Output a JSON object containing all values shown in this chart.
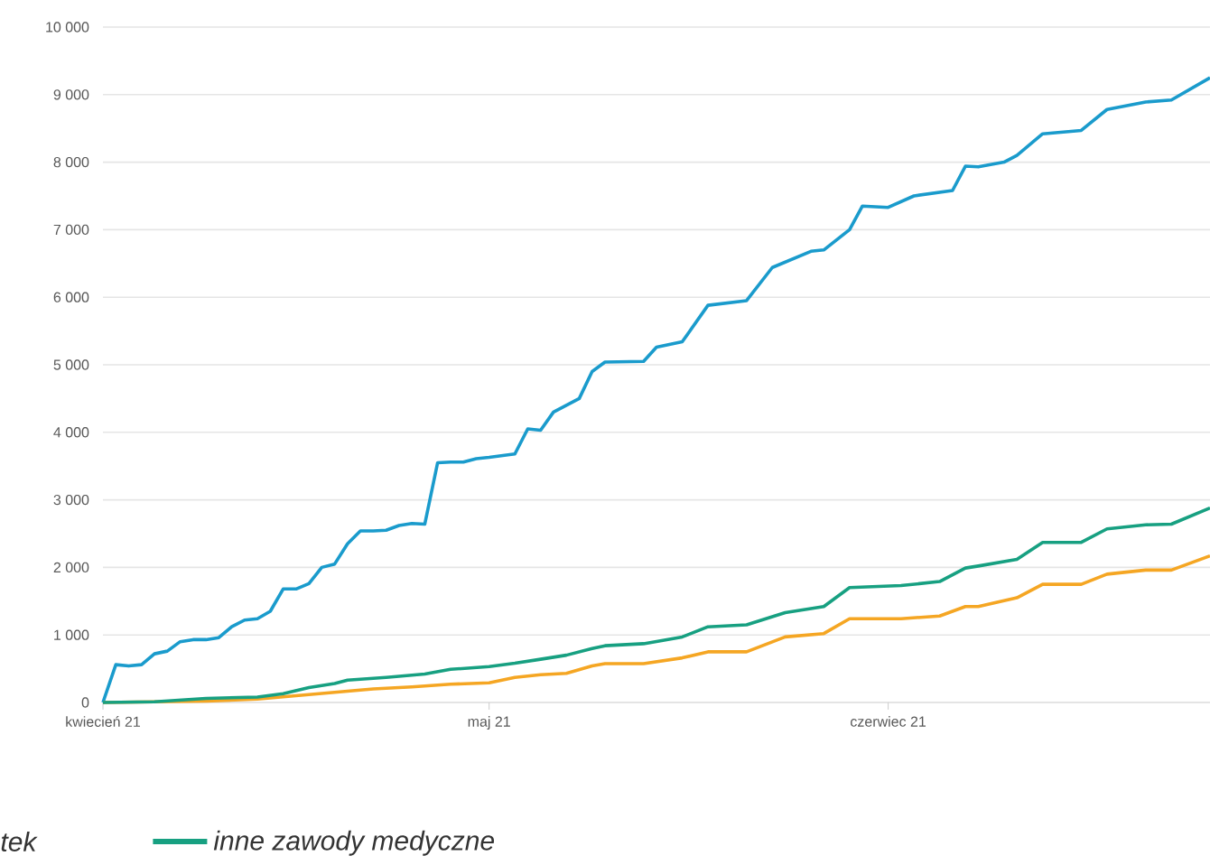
{
  "chart_data": {
    "type": "line",
    "xlim": [
      "2021-04-01",
      "2021-06-26"
    ],
    "xticks": [
      {
        "value": "2021-04-01",
        "label": "kwiecień 21"
      },
      {
        "value": "2021-05-01",
        "label": "maj 21"
      },
      {
        "value": "2021-06-01",
        "label": "czerwiec 21"
      }
    ],
    "ylim": [
      0,
      10000
    ],
    "yticks": [
      0,
      {
        "value": 1000,
        "label": "1 000"
      },
      {
        "value": 2000,
        "label": "2 000"
      },
      {
        "value": 3000,
        "label": "3 000"
      },
      {
        "value": 4000,
        "label": "4 000"
      },
      {
        "value": 5000,
        "label": "5 000"
      },
      {
        "value": 6000,
        "label": "6 000"
      },
      {
        "value": 7000,
        "label": "7 000"
      },
      {
        "value": 8000,
        "label": "8 000"
      },
      {
        "value": 9000,
        "label": "9 000"
      },
      {
        "value": 10000,
        "label": "10 000"
      }
    ],
    "grid": "y",
    "legend": "bottom",
    "marker": "none",
    "line_style": "solid",
    "annotations": [
      "tek"
    ],
    "series": [
      {
        "color": "#1a9bcc",
        "x": [
          "2021-04-01",
          "2021-04-02",
          "2021-04-03",
          "2021-04-04",
          "2021-04-05",
          "2021-04-06",
          "2021-04-07",
          "2021-04-08",
          "2021-04-09",
          "2021-04-10",
          "2021-04-11",
          "2021-04-12",
          "2021-04-13",
          "2021-04-14",
          "2021-04-15",
          "2021-04-16",
          "2021-04-17",
          "2021-04-18",
          "2021-04-19",
          "2021-04-20",
          "2021-04-21",
          "2021-04-22",
          "2021-04-23",
          "2021-04-24",
          "2021-04-25",
          "2021-04-26",
          "2021-04-27",
          "2021-04-28",
          "2021-04-29",
          "2021-04-30",
          "2021-05-01",
          "2021-05-03",
          "2021-05-04",
          "2021-05-05",
          "2021-05-06",
          "2021-05-08",
          "2021-05-09",
          "2021-05-10",
          "2021-05-13",
          "2021-05-14",
          "2021-05-16",
          "2021-05-18",
          "2021-05-21",
          "2021-05-23",
          "2021-05-26",
          "2021-05-27",
          "2021-05-29",
          "2021-05-30",
          "2021-06-01",
          "2021-06-03",
          "2021-06-06",
          "2021-06-07",
          "2021-06-08",
          "2021-06-10",
          "2021-06-11",
          "2021-06-13",
          "2021-06-16",
          "2021-06-18",
          "2021-06-21",
          "2021-06-23",
          "2021-06-26"
        ],
        "values": [
          0,
          560,
          540,
          560,
          720,
          760,
          900,
          930,
          930,
          960,
          1120,
          1220,
          1240,
          1350,
          1680,
          1680,
          1760,
          2000,
          2050,
          2350,
          2540,
          2540,
          2550,
          2620,
          2650,
          2640,
          3550,
          3560,
          3560,
          3610,
          3630,
          3680,
          4050,
          4030,
          4300,
          4500,
          4900,
          5040,
          5050,
          5260,
          5340,
          5880,
          5950,
          6440,
          6680,
          6700,
          7000,
          7350,
          7330,
          7500,
          7580,
          7940,
          7930,
          8000,
          8100,
          8420,
          8470,
          8780,
          8890,
          8920,
          9250
        ]
      },
      {
        "color": "#f5a623",
        "x": [
          "2021-04-01",
          "2021-04-05",
          "2021-04-09",
          "2021-04-13",
          "2021-04-16",
          "2021-04-19",
          "2021-04-22",
          "2021-04-25",
          "2021-04-28",
          "2021-05-01",
          "2021-05-03",
          "2021-05-05",
          "2021-05-07",
          "2021-05-09",
          "2021-05-10",
          "2021-05-13",
          "2021-05-16",
          "2021-05-18",
          "2021-05-21",
          "2021-05-24",
          "2021-05-27",
          "2021-05-29",
          "2021-06-02",
          "2021-06-05",
          "2021-06-07",
          "2021-06-08",
          "2021-06-11",
          "2021-06-13",
          "2021-06-16",
          "2021-06-18",
          "2021-06-21",
          "2021-06-23",
          "2021-06-26"
        ],
        "values": [
          0,
          10,
          20,
          50,
          100,
          150,
          200,
          230,
          270,
          290,
          370,
          410,
          430,
          540,
          575,
          575,
          660,
          750,
          750,
          970,
          1020,
          1240,
          1240,
          1280,
          1420,
          1420,
          1550,
          1750,
          1750,
          1900,
          1960,
          1960,
          2170
        ]
      },
      {
        "name": "inne zawody medyczne",
        "color": "#17a081",
        "x": [
          "2021-04-01",
          "2021-04-05",
          "2021-04-09",
          "2021-04-13",
          "2021-04-15",
          "2021-04-17",
          "2021-04-19",
          "2021-04-20",
          "2021-04-23",
          "2021-04-26",
          "2021-04-28",
          "2021-05-01",
          "2021-05-03",
          "2021-05-05",
          "2021-05-07",
          "2021-05-09",
          "2021-05-10",
          "2021-05-13",
          "2021-05-16",
          "2021-05-18",
          "2021-05-21",
          "2021-05-24",
          "2021-05-27",
          "2021-05-29",
          "2021-06-02",
          "2021-06-05",
          "2021-06-07",
          "2021-06-08",
          "2021-06-11",
          "2021-06-13",
          "2021-06-16",
          "2021-06-18",
          "2021-06-21",
          "2021-06-23",
          "2021-06-26"
        ],
        "values": [
          0,
          10,
          60,
          80,
          130,
          220,
          280,
          330,
          370,
          420,
          490,
          530,
          580,
          640,
          700,
          800,
          840,
          870,
          970,
          1120,
          1150,
          1330,
          1420,
          1700,
          1730,
          1790,
          1990,
          2020,
          2120,
          2370,
          2370,
          2570,
          2630,
          2640,
          2880
        ]
      }
    ]
  }
}
